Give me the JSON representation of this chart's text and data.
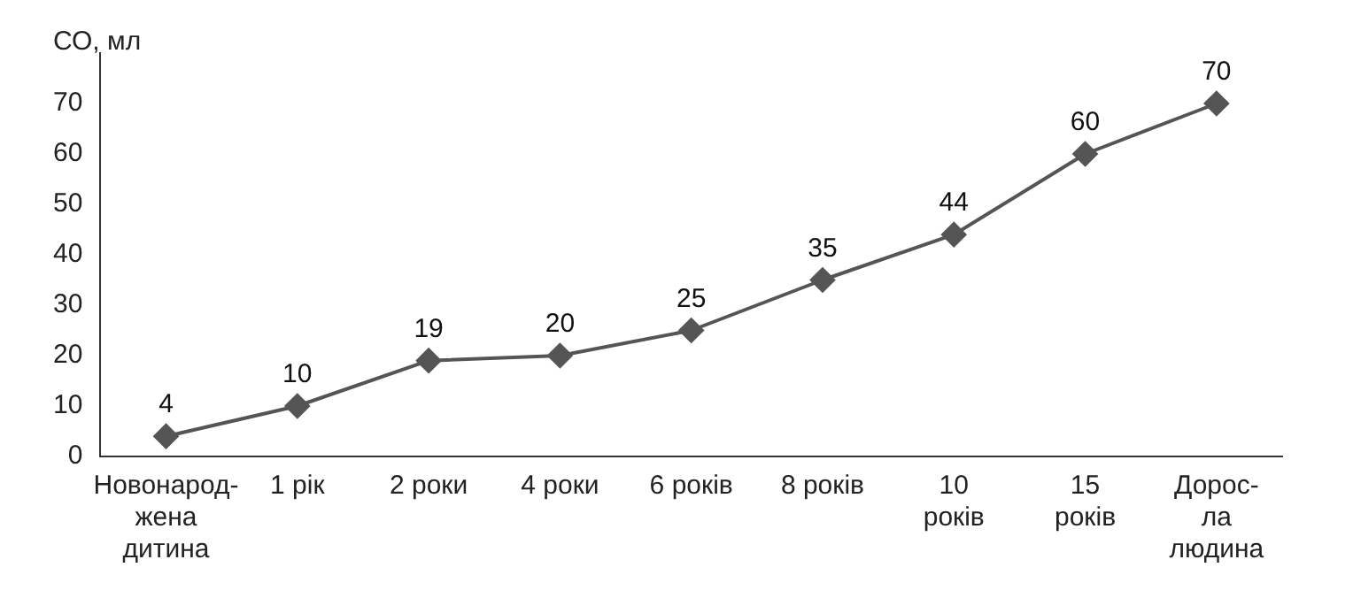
{
  "chart_data": {
    "type": "line",
    "ylabel": "СО, мл",
    "categories": [
      "Новонарод-\nжена\nдитина",
      "1 рік",
      "2 роки",
      "4 роки",
      "6 років",
      "8 років",
      "10\nроків",
      "15\nроків",
      "Дорос-\nла\nлюдина"
    ],
    "series": [
      {
        "color": "#555555",
        "values": [
          4,
          10,
          19,
          20,
          25,
          35,
          44,
          60,
          70
        ]
      }
    ],
    "ylim": [
      0,
      80
    ],
    "yticks": [
      0,
      10,
      20,
      30,
      40,
      50,
      60,
      70
    ],
    "grid": false,
    "legend": false,
    "marker": "diamond",
    "line_style": "solid",
    "data_labels": true
  }
}
